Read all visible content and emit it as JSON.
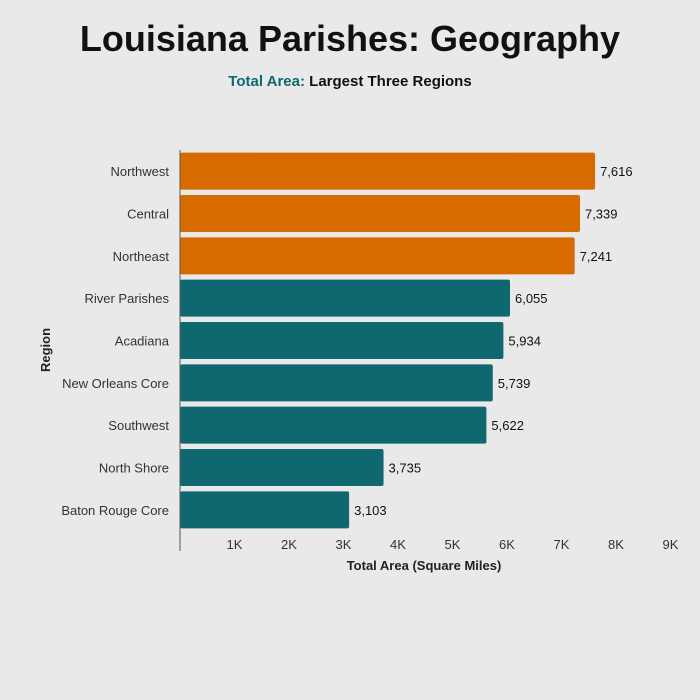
{
  "title": "Louisiana Parishes: Geography",
  "subtitle": {
    "accent": "Total Area:",
    "rest": " Largest Three Regions"
  },
  "colors": {
    "highlight": "#d86b00",
    "base": "#0f6870",
    "accent_text": "#0f6870"
  },
  "chart_data": {
    "type": "bar",
    "orientation": "horizontal",
    "categories": [
      "Northwest",
      "Central",
      "Northeast",
      "River Parishes",
      "Acadiana",
      "New Orleans Core",
      "Southwest",
      "North Shore",
      "Baton Rouge Core"
    ],
    "values": [
      7616,
      7339,
      7241,
      6055,
      5934,
      5739,
      5622,
      3735,
      3103
    ],
    "value_labels": [
      "7,616",
      "7,339",
      "7,241",
      "6,055",
      "5,934",
      "5,739",
      "5,622",
      "3,735",
      "3,103"
    ],
    "highlighted": [
      true,
      true,
      true,
      false,
      false,
      false,
      false,
      false,
      false
    ],
    "xlabel": "Total Area (Square Miles)",
    "ylabel": "Region",
    "xlim": [
      0,
      9000
    ],
    "xticks": [
      1000,
      2000,
      3000,
      4000,
      5000,
      6000,
      7000,
      8000,
      9000
    ],
    "xtick_labels": [
      "1K",
      "2K",
      "3K",
      "4K",
      "5K",
      "6K",
      "7K",
      "8K",
      "9K"
    ],
    "grid": false,
    "legend": "none"
  }
}
